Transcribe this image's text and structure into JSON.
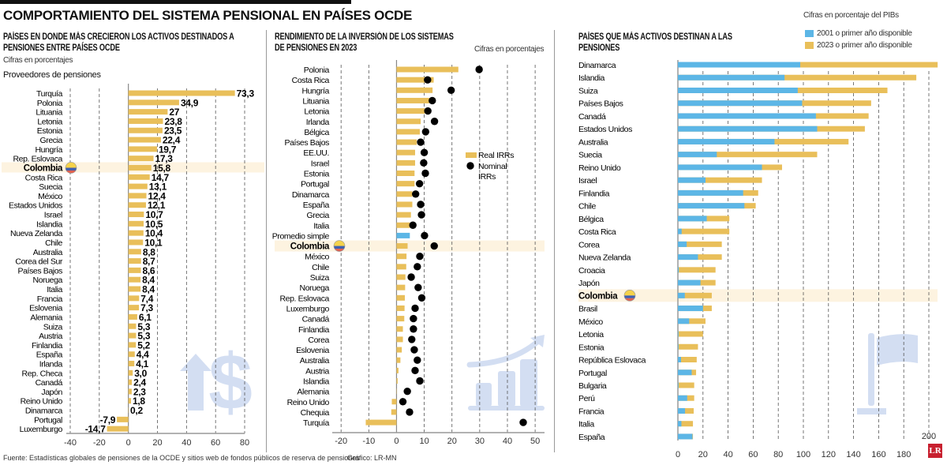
{
  "title": "COMPORTAMIENTO DEL SISTEMA PENSIONAL EN PAÍSES OCDE",
  "footer": {
    "source": "Fuente: Estadísticas globales de pensiones de la OCDE y sitios web de fondos públicos de reserva de pensiones",
    "credit": "Gráfico: LR-MN",
    "logo": "LR"
  },
  "colors": {
    "gold": "#e9bf5a",
    "blue": "#5cb6e6",
    "highlight": "#fdf3e0",
    "icon": "#d3def2"
  },
  "icons": [
    "dollar-arrow-icon",
    "growth-chart-icon",
    "flag-icon",
    "colombia-flag-icon"
  ],
  "chart_data": [
    {
      "type": "bar",
      "title": "PAÍSES EN DONDE MÁS CRECIERON LOS ACTIVOS DESTINADOS A PENSIONES ENTRE PAÍSES OCDE",
      "subtitle": "Cifras en porcentajes",
      "section_label": "Proveedores de pensiones",
      "orientation": "horizontal",
      "highlight": "Colombia",
      "categories": [
        "Turquía",
        "Polonia",
        "Lituania",
        "Letonia",
        "Estonia",
        "Grecia",
        "Hungría",
        "Rep. Eslovaca",
        "Colombia",
        "Costa Rica",
        "Suecia",
        "México",
        "Estados Unidos",
        "Israel",
        "Islandia",
        "Nueva Zelanda",
        "Chile",
        "Australia",
        "Corea del Sur",
        "Países Bajos",
        "Noruega",
        "Italia",
        "Francia",
        "Eslovenia",
        "Alemania",
        "Suiza",
        "Austria",
        "Finlandia",
        "España",
        "Irlanda",
        "Rep. Checa",
        "Canadá",
        "Japón",
        "Reino Unido",
        "Dinamarca",
        "Portugal",
        "Luxemburgo"
      ],
      "values": [
        73.3,
        34.9,
        27,
        23.8,
        23.5,
        22.4,
        19.7,
        17.3,
        15.8,
        14.7,
        13.1,
        12.4,
        12.1,
        10.7,
        10.5,
        10.4,
        10.1,
        8.8,
        8.7,
        8.6,
        8.4,
        8.4,
        7.4,
        7.3,
        6.1,
        5.3,
        5.3,
        5.2,
        4.4,
        4.1,
        3.0,
        2.4,
        2.3,
        1.8,
        0.2,
        -7.9,
        -14.7
      ],
      "value_labels": [
        "73,3",
        "34,9",
        "27",
        "23,8",
        "23,5",
        "22,4",
        "19,7",
        "17,3",
        "15,8",
        "14,7",
        "13,1",
        "12,4",
        "12,1",
        "10,7",
        "10,5",
        "10,4",
        "10,1",
        "8,8",
        "8,7",
        "8,6",
        "8,4",
        "8,4",
        "7,4",
        "7,3",
        "6,1",
        "5,3",
        "5,3",
        "5,2",
        "4,4",
        "4,1",
        "3,0",
        "2,4",
        "2,3",
        "1,8",
        "0,2",
        "-7,9",
        "-14,7"
      ],
      "xlim": [
        -40,
        80
      ],
      "xticks": [
        -40,
        -20,
        0,
        20,
        40,
        60,
        80
      ],
      "grid": true
    },
    {
      "type": "bar+scatter",
      "title": "RENDIMIENTO DE LA INVERSIÓN DE LOS SISTEMAS DE PENSIONES EN 2023",
      "subtitle": "Cifras en porcentajes",
      "orientation": "horizontal",
      "highlight": "Colombia",
      "categories": [
        "Polonia",
        "Costa Rica",
        "Hungría",
        "Lituania",
        "Letonia",
        "Irlanda",
        "Bélgica",
        "Países Bajos",
        "EE.UU.",
        "Israel",
        "Estonia",
        "Portugal",
        "Dinamarca",
        "España",
        "Grecia",
        "Italia",
        "Promedio simple",
        "Colombia",
        "México",
        "Chile",
        "Suiza",
        "Noruega",
        "Rep. Eslovaca",
        "Luxemburgo",
        "Canadá",
        "Finlandia",
        "Corea",
        "Eslovenia",
        "Australia",
        "Austria",
        "Islandia",
        "Alemania",
        "Reino Unido",
        "Chequia",
        "Turquía"
      ],
      "series": [
        {
          "name": "Real IRRs",
          "values": [
            22.3,
            13.4,
            13.0,
            11.8,
            10.2,
            8.7,
            8.4,
            7.3,
            6.7,
            6.7,
            6.5,
            6.5,
            5.7,
            5.7,
            5.2,
            4.8,
            4.8,
            4.0,
            3.6,
            3.5,
            3.2,
            3.1,
            3.0,
            2.9,
            2.8,
            2.3,
            2.3,
            1.9,
            1.4,
            0.7,
            0.4,
            0.1,
            -1.7,
            -1.9,
            -11.1
          ]
        },
        {
          "name": "Nominal IRRs",
          "values": [
            29.8,
            11.2,
            19.7,
            12.9,
            11.3,
            13.7,
            10.5,
            8.7,
            10.0,
            9.8,
            10.4,
            8.3,
            6.9,
            8.7,
            9.0,
            5.9,
            10.1,
            13.6,
            8.4,
            7.5,
            5.3,
            7.8,
            9.1,
            6.7,
            6.1,
            6.1,
            5.5,
            6.4,
            7.5,
            6.7,
            8.4,
            3.9,
            2.3,
            4.7,
            45.7
          ]
        }
      ],
      "legend": {
        "real": "Real IRRs",
        "nominal_1": "Nominal",
        "nominal_2": "IRRs"
      },
      "legend_placement": "center-right",
      "xlim": [
        -20,
        50
      ],
      "xticks": [
        -20,
        -10,
        0,
        10,
        20,
        30,
        40,
        50
      ],
      "grid": true
    },
    {
      "type": "bar",
      "title": "PAÍSES QUE MÁS ACTIVOS DESTINAN A LAS PENSIONES",
      "subtitle": "Cifras en porcentaje del PIBs",
      "orientation": "horizontal",
      "highlight": "Colombia",
      "categories": [
        "Dinamarca",
        "Islandia",
        "Suiza",
        "Países Bajos",
        "Canadá",
        "Estados Unidos",
        "Australia",
        "Suecia",
        "Reino Unido",
        "Israel",
        "Finlandia",
        "Chile",
        "Bélgica",
        "Costa Rica",
        "Corea",
        "Nueva Zelanda",
        "Croacia",
        "Japón",
        "Colombia",
        "Brasil",
        "México",
        "Letonia",
        "Estonia",
        "República Eslovaca",
        "Portugal",
        "Bulgaria",
        "Perú",
        "Francia",
        "Italia",
        "España"
      ],
      "series": [
        {
          "name": "2001 o primer año disponible",
          "values": [
            97.5,
            85,
            95.5,
            99,
            110,
            111,
            77,
            31,
            67,
            22,
            52,
            53,
            23,
            3,
            7,
            16,
            0.7,
            18,
            5.5,
            20,
            9,
            0.5,
            0.5,
            2.5,
            11,
            0.5,
            7.4,
            5.7,
            2.8,
            11.6
          ]
        },
        {
          "name": "2023 o primer año disponible",
          "values": [
            207,
            190,
            167,
            154,
            152,
            149,
            136,
            111,
            83,
            67,
            64,
            62,
            41,
            41,
            35,
            35,
            30,
            30,
            27,
            27,
            22,
            20,
            16,
            15,
            14.5,
            13,
            13,
            12.6,
            12,
            12
          ]
        }
      ],
      "legend_placement": "top-right",
      "xlim": [
        0,
        200
      ],
      "xticks": [
        0,
        20,
        40,
        60,
        80,
        100,
        120,
        140,
        160,
        180,
        200
      ],
      "grid": true
    }
  ]
}
